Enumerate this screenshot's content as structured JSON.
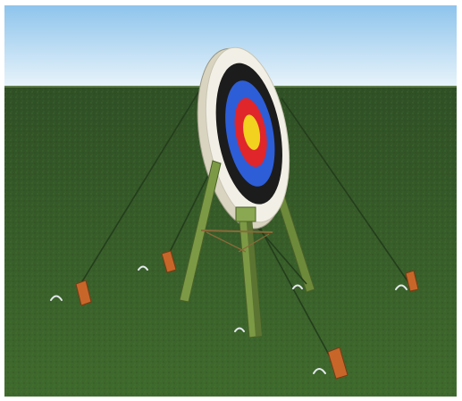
{
  "scene": {
    "subject": "archery-target-on-tripod-stand",
    "colors": {
      "sky_top": "#8ec4ec",
      "sky_horizon": "#e9f4fb",
      "grass_far": "#2f4f25",
      "grass_near": "#3f6a2d",
      "stand_wood": "#7c9a45",
      "stand_dark": "#5b7431",
      "ring_white": "#f2f0e6",
      "ring_black": "#1c1c1c",
      "ring_blue": "#2d5ed8",
      "ring_red": "#e0252b",
      "ring_gold": "#f2d21e",
      "stake": "#c8662a",
      "rope": "#233d1c"
    }
  }
}
